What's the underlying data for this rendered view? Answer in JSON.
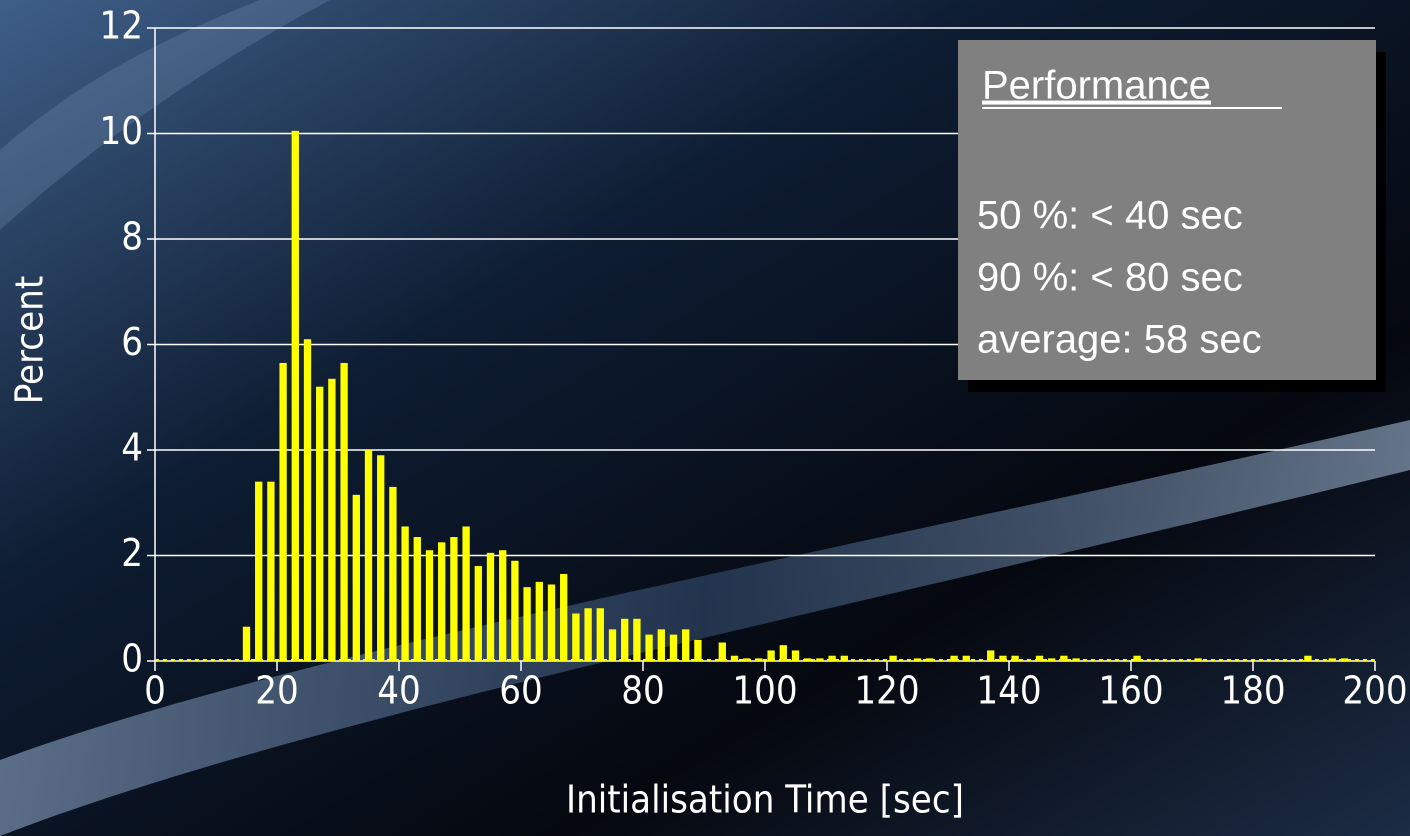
{
  "chart_data": {
    "type": "histogram",
    "xlabel": "Initialisation Time [sec]",
    "ylabel": "Percent",
    "bins": [
      0,
      2,
      4,
      6,
      8,
      10,
      12,
      14,
      16,
      18,
      20,
      22,
      24,
      26,
      28,
      30,
      32,
      34,
      36,
      38,
      40,
      42,
      44,
      46,
      48,
      50,
      52,
      54,
      56,
      58,
      60,
      62,
      64,
      66,
      68,
      70,
      72,
      74,
      76,
      78,
      80,
      82,
      84,
      86,
      88,
      90,
      92,
      94,
      96,
      98,
      100,
      102,
      104,
      106,
      108,
      110,
      112,
      114,
      116,
      118,
      120,
      122,
      124,
      126,
      128,
      130,
      132,
      134,
      136,
      138,
      140,
      142,
      144,
      146,
      148,
      150,
      152,
      154,
      156,
      158,
      160,
      162,
      164,
      166,
      168,
      170,
      172,
      174,
      176,
      178,
      180,
      182,
      184,
      186,
      188,
      190,
      192,
      194,
      196,
      198,
      200
    ],
    "counts": [
      0,
      0,
      0,
      0,
      0,
      0,
      0,
      0.65,
      3.4,
      3.4,
      5.65,
      10.05,
      6.1,
      5.2,
      5.35,
      5.65,
      3.15,
      4.0,
      3.9,
      3.3,
      2.55,
      2.35,
      2.1,
      2.25,
      2.35,
      2.55,
      1.8,
      2.05,
      2.1,
      1.9,
      1.4,
      1.5,
      1.45,
      1.65,
      0.9,
      1.0,
      1.0,
      0.6,
      0.8,
      0.8,
      0.5,
      0.6,
      0.5,
      0.6,
      0.4,
      0,
      0.35,
      0.1,
      0.05,
      0.05,
      0.2,
      0.3,
      0.2,
      0.05,
      0.05,
      0.1,
      0.1,
      0,
      0,
      0,
      0.1,
      0,
      0.05,
      0.05,
      0,
      0.1,
      0.1,
      0,
      0.2,
      0.1,
      0.1,
      0,
      0.1,
      0.05,
      0.1,
      0.05,
      0,
      0,
      0,
      0,
      0.1,
      0,
      0,
      0,
      0,
      0.05,
      0,
      0,
      0,
      0,
      0,
      0,
      0,
      0,
      0.1,
      0,
      0.05,
      0.05,
      0,
      0
    ],
    "color": "#ffff00",
    "xlim": [
      0,
      200
    ],
    "xticks": [
      0,
      20,
      40,
      60,
      80,
      100,
      120,
      140,
      160,
      180,
      200
    ],
    "ylim": [
      0,
      12
    ],
    "yticks": [
      0,
      2,
      4,
      6,
      8,
      10,
      12
    ],
    "grid": true,
    "annotation": {
      "title": "Performance",
      "lines": [
        "50 %: < 40 sec",
        "90 %: < 80 sec",
        "average: 58 sec"
      ]
    }
  }
}
